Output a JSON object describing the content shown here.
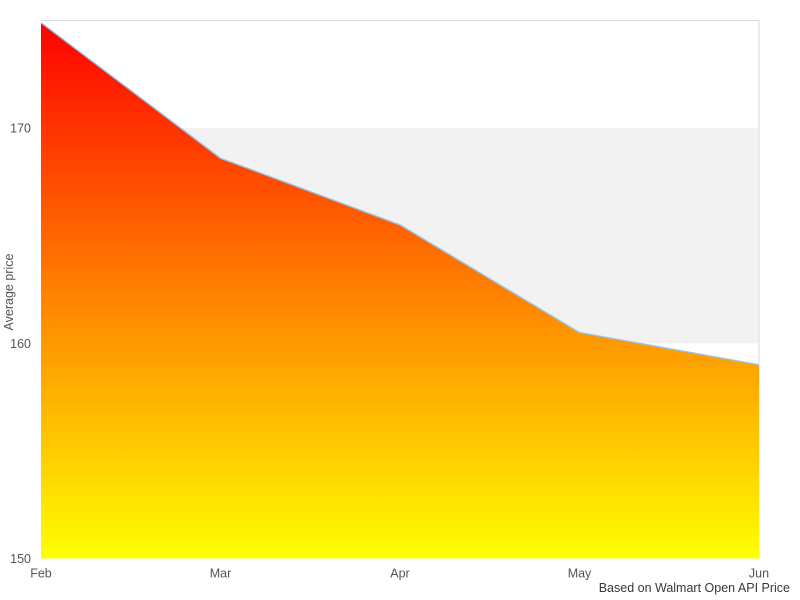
{
  "caption": "Based on Walmart Open API Price",
  "chart_data": {
    "type": "area",
    "title": "",
    "categories": [
      "Feb",
      "Mar",
      "Apr",
      "May",
      "Jun"
    ],
    "values": [
      174.9,
      168.6,
      165.5,
      160.5,
      159.0
    ],
    "xlabel": "",
    "ylabel": "Average price",
    "ylim": [
      150,
      175
    ],
    "yticks": [
      150,
      160,
      170
    ],
    "band": {
      "from": 160,
      "to": 170
    },
    "grid": "horizontal-band-only",
    "legend": "none",
    "colors": {
      "area_gradient_top": "#ff0000",
      "area_gradient_bottom": "#ffff00",
      "line": "#9dc2e0",
      "band": "#f2f2f2",
      "plot_border": "#d9d9d9",
      "tick_text": "#545454",
      "caption_text": "#383838",
      "background": "#ffffff"
    }
  }
}
